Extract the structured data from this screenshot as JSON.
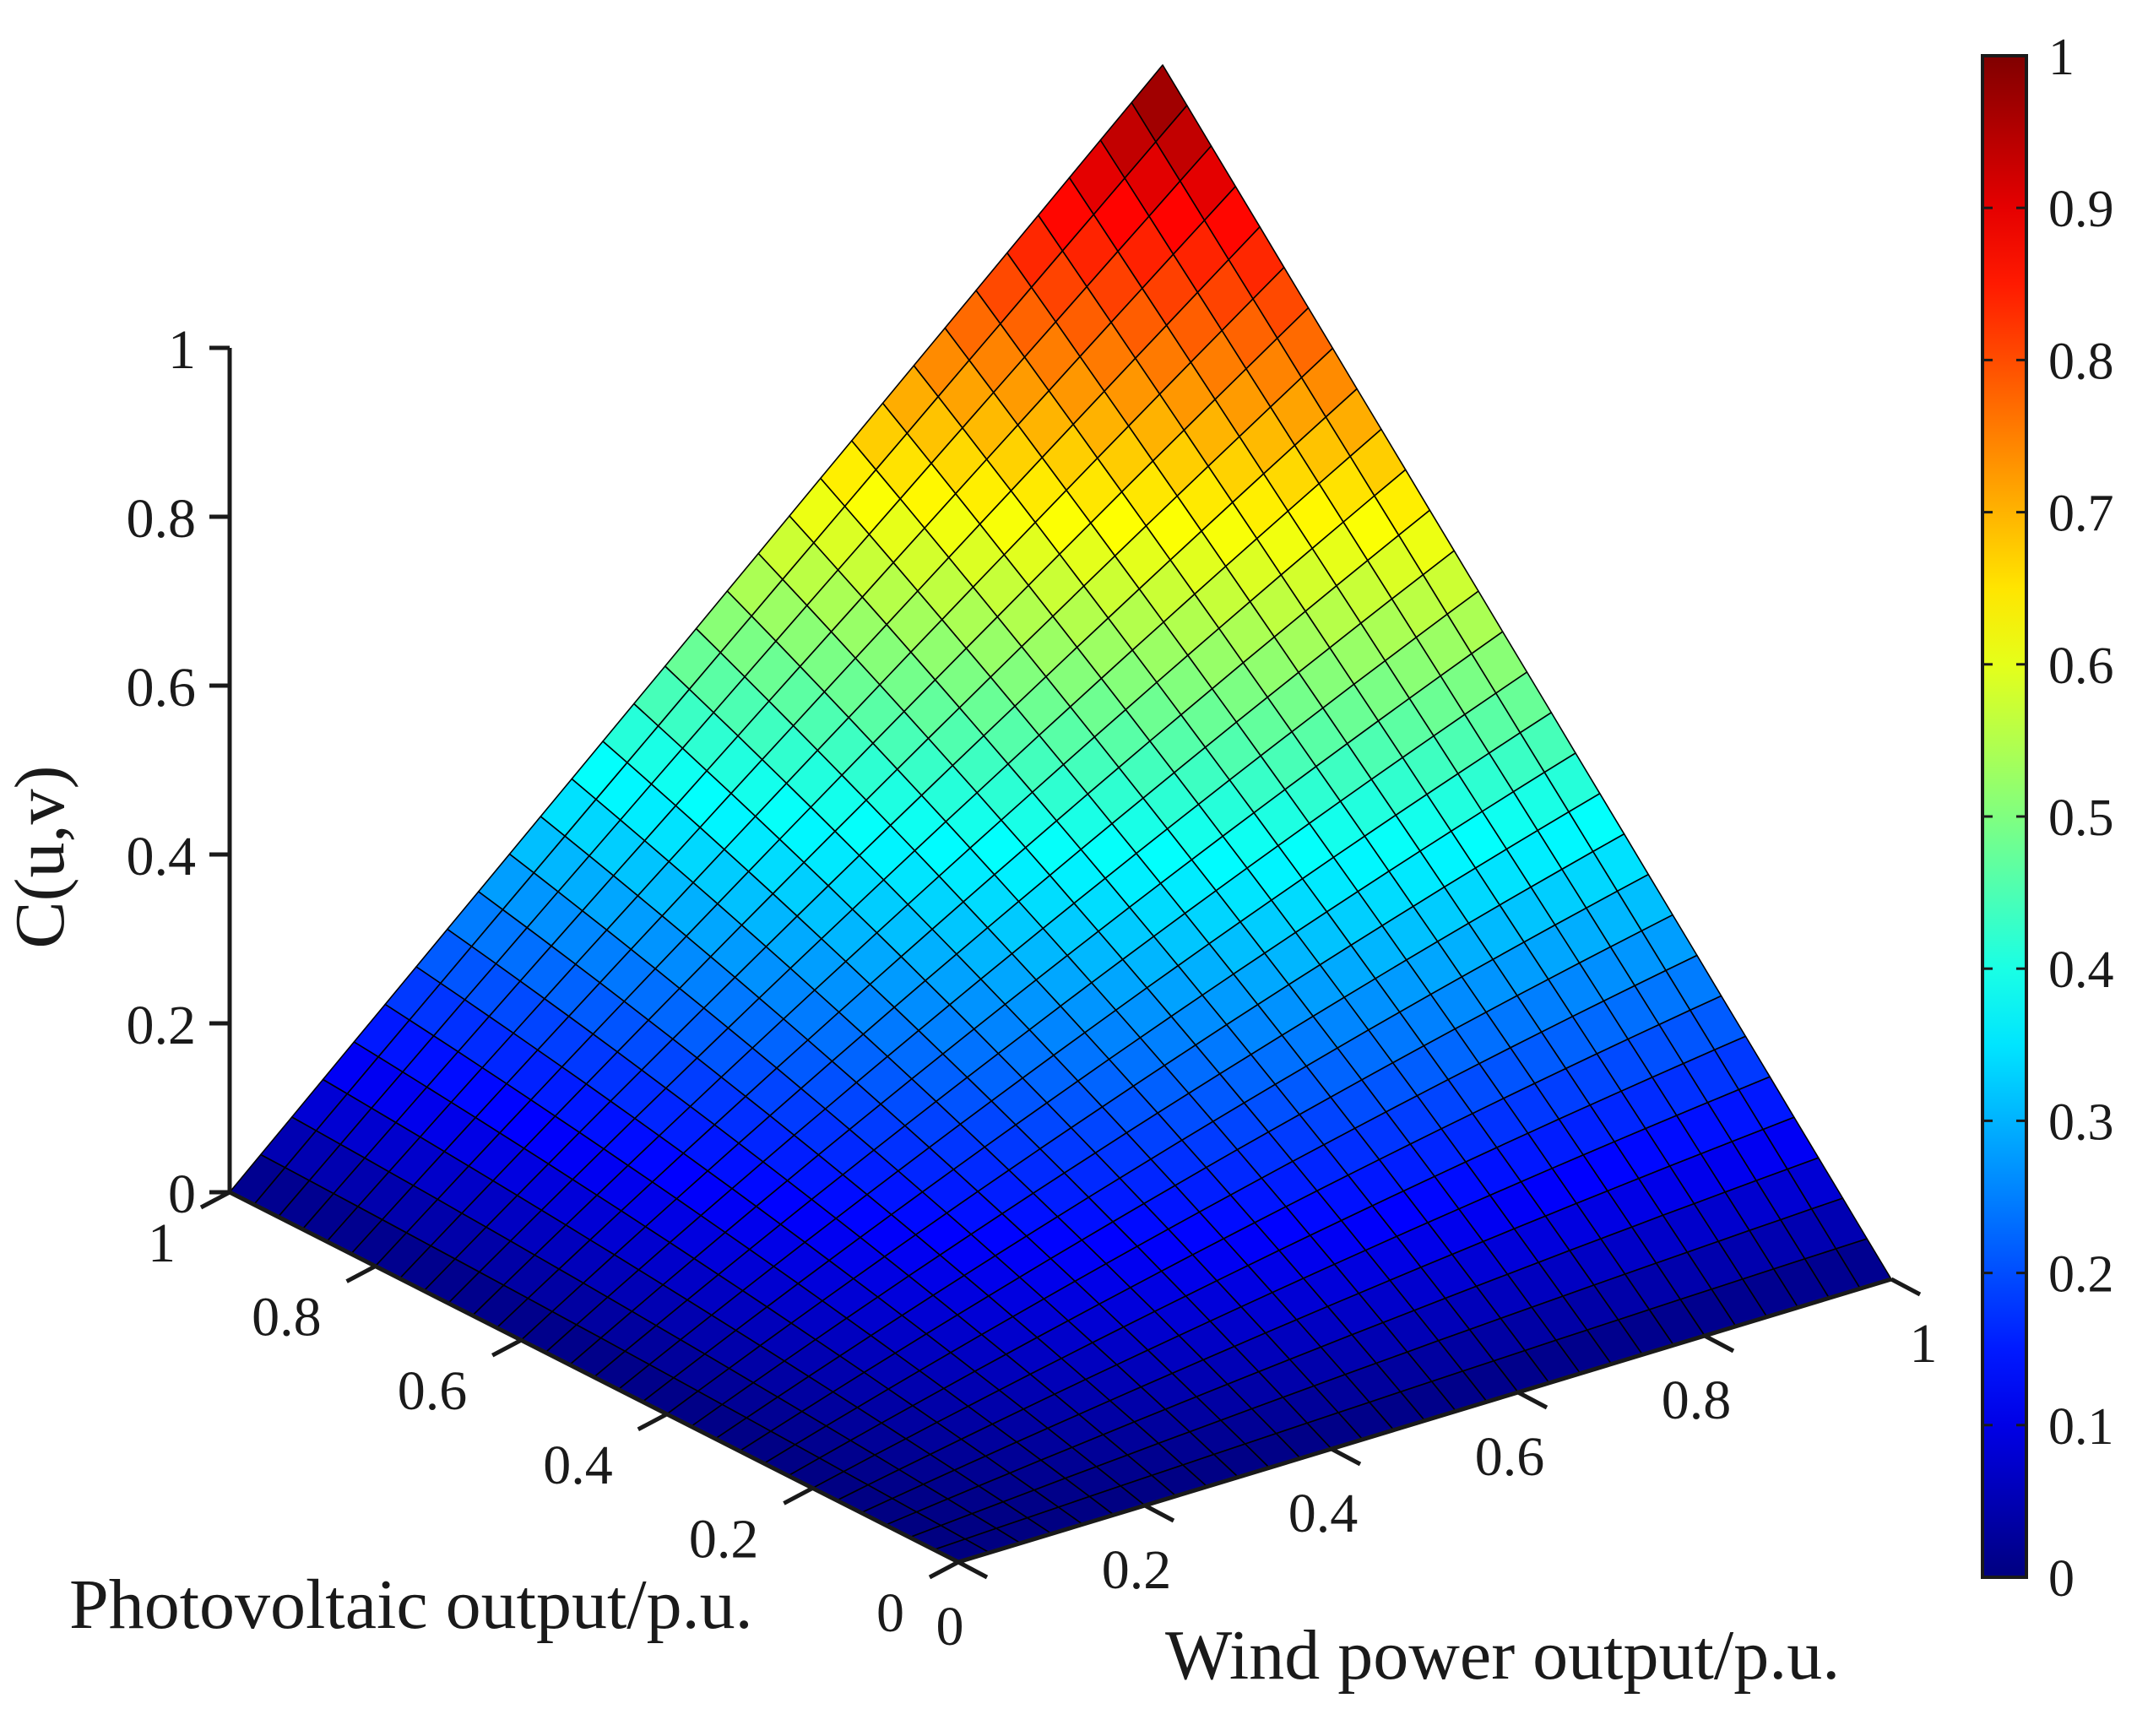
{
  "chart_data": {
    "type": "surface",
    "zlabel": "C(u,v)",
    "xlabel": "Wind power output/p.u.",
    "ylabel": "Photovoltaic output/p.u.",
    "xlim": [
      0,
      1
    ],
    "ylim": [
      0,
      1
    ],
    "zlim": [
      0,
      1
    ],
    "x_ticks": [
      "0",
      "0.2",
      "0.4",
      "0.6",
      "0.8",
      "1"
    ],
    "y_ticks": [
      "0",
      "0.2",
      "0.4",
      "0.6",
      "0.8",
      "1"
    ],
    "z_ticks": [
      "0",
      "0.2",
      "0.4",
      "0.6",
      "0.8",
      "1"
    ],
    "grid_n": 30,
    "surface": "C(u,v) copula CDF, C(u,0)=C(0,v)=0, C(u,1)=u, C(1,v)=v, C(1,1)=1",
    "colormap": "jet",
    "colorbar": {
      "range": [
        0,
        1
      ],
      "ticks": [
        "0",
        "0.1",
        "0.2",
        "0.3",
        "0.4",
        "0.5",
        "0.6",
        "0.7",
        "0.8",
        "0.9",
        "1"
      ]
    },
    "edge_color": "#000000"
  }
}
